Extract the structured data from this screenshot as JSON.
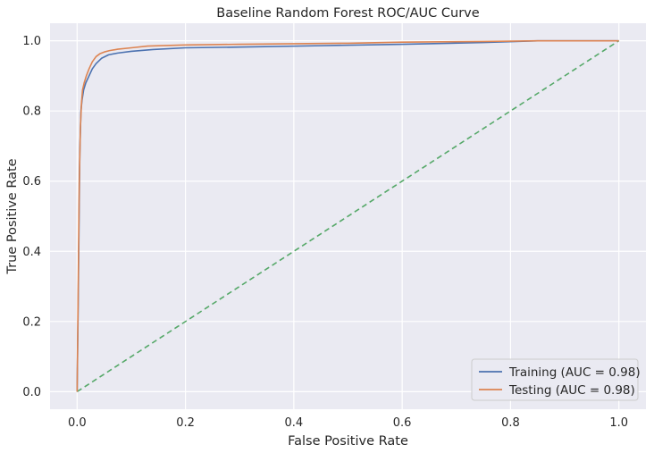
{
  "chart_data": {
    "type": "line",
    "title": "Baseline Random Forest ROC/AUC Curve",
    "xlabel": "False Positive Rate",
    "ylabel": "True Positive Rate",
    "xlim": [
      -0.05,
      1.05
    ],
    "ylim": [
      -0.05,
      1.05
    ],
    "xticks": [
      0.0,
      0.2,
      0.4,
      0.6,
      0.8,
      1.0
    ],
    "yticks": [
      0.0,
      0.2,
      0.4,
      0.6,
      0.8,
      1.0
    ],
    "xtick_labels": [
      "0.0",
      "0.2",
      "0.4",
      "0.6",
      "0.8",
      "1.0"
    ],
    "ytick_labels": [
      "0.0",
      "0.2",
      "0.4",
      "0.6",
      "0.8",
      "1.0"
    ],
    "grid": true,
    "legend_position": "lower-right",
    "background_color": "#eaeaf2",
    "series": [
      {
        "name": "Training (AUC = 0.98)",
        "color": "#4c72b0",
        "x": [
          0.0,
          0.002,
          0.004,
          0.005,
          0.007,
          0.009,
          0.012,
          0.016,
          0.022,
          0.028,
          0.035,
          0.045,
          0.058,
          0.075,
          0.1,
          0.14,
          0.2,
          0.3,
          0.45,
          0.6,
          0.75,
          0.85,
          1.0
        ],
        "y": [
          0.0,
          0.25,
          0.55,
          0.68,
          0.8,
          0.83,
          0.86,
          0.88,
          0.9,
          0.92,
          0.935,
          0.95,
          0.96,
          0.965,
          0.97,
          0.975,
          0.98,
          0.982,
          0.986,
          0.99,
          0.995,
          1.0,
          1.0
        ]
      },
      {
        "name": "Testing (AUC = 0.98)",
        "color": "#dd8452",
        "x": [
          0.0,
          0.002,
          0.004,
          0.006,
          0.008,
          0.01,
          0.013,
          0.017,
          0.022,
          0.028,
          0.035,
          0.042,
          0.05,
          0.06,
          0.075,
          0.1,
          0.13,
          0.2,
          0.3,
          0.5,
          0.6,
          0.75,
          0.85,
          1.0
        ],
        "y": [
          0.0,
          0.3,
          0.6,
          0.75,
          0.82,
          0.86,
          0.88,
          0.9,
          0.92,
          0.94,
          0.955,
          0.963,
          0.968,
          0.972,
          0.976,
          0.98,
          0.985,
          0.988,
          0.99,
          0.993,
          0.996,
          0.998,
          1.0,
          1.0
        ]
      },
      {
        "name": "",
        "color": "#55a868",
        "dashed": true,
        "x": [
          0.0,
          1.0
        ],
        "y": [
          0.0,
          1.0
        ]
      }
    ]
  }
}
